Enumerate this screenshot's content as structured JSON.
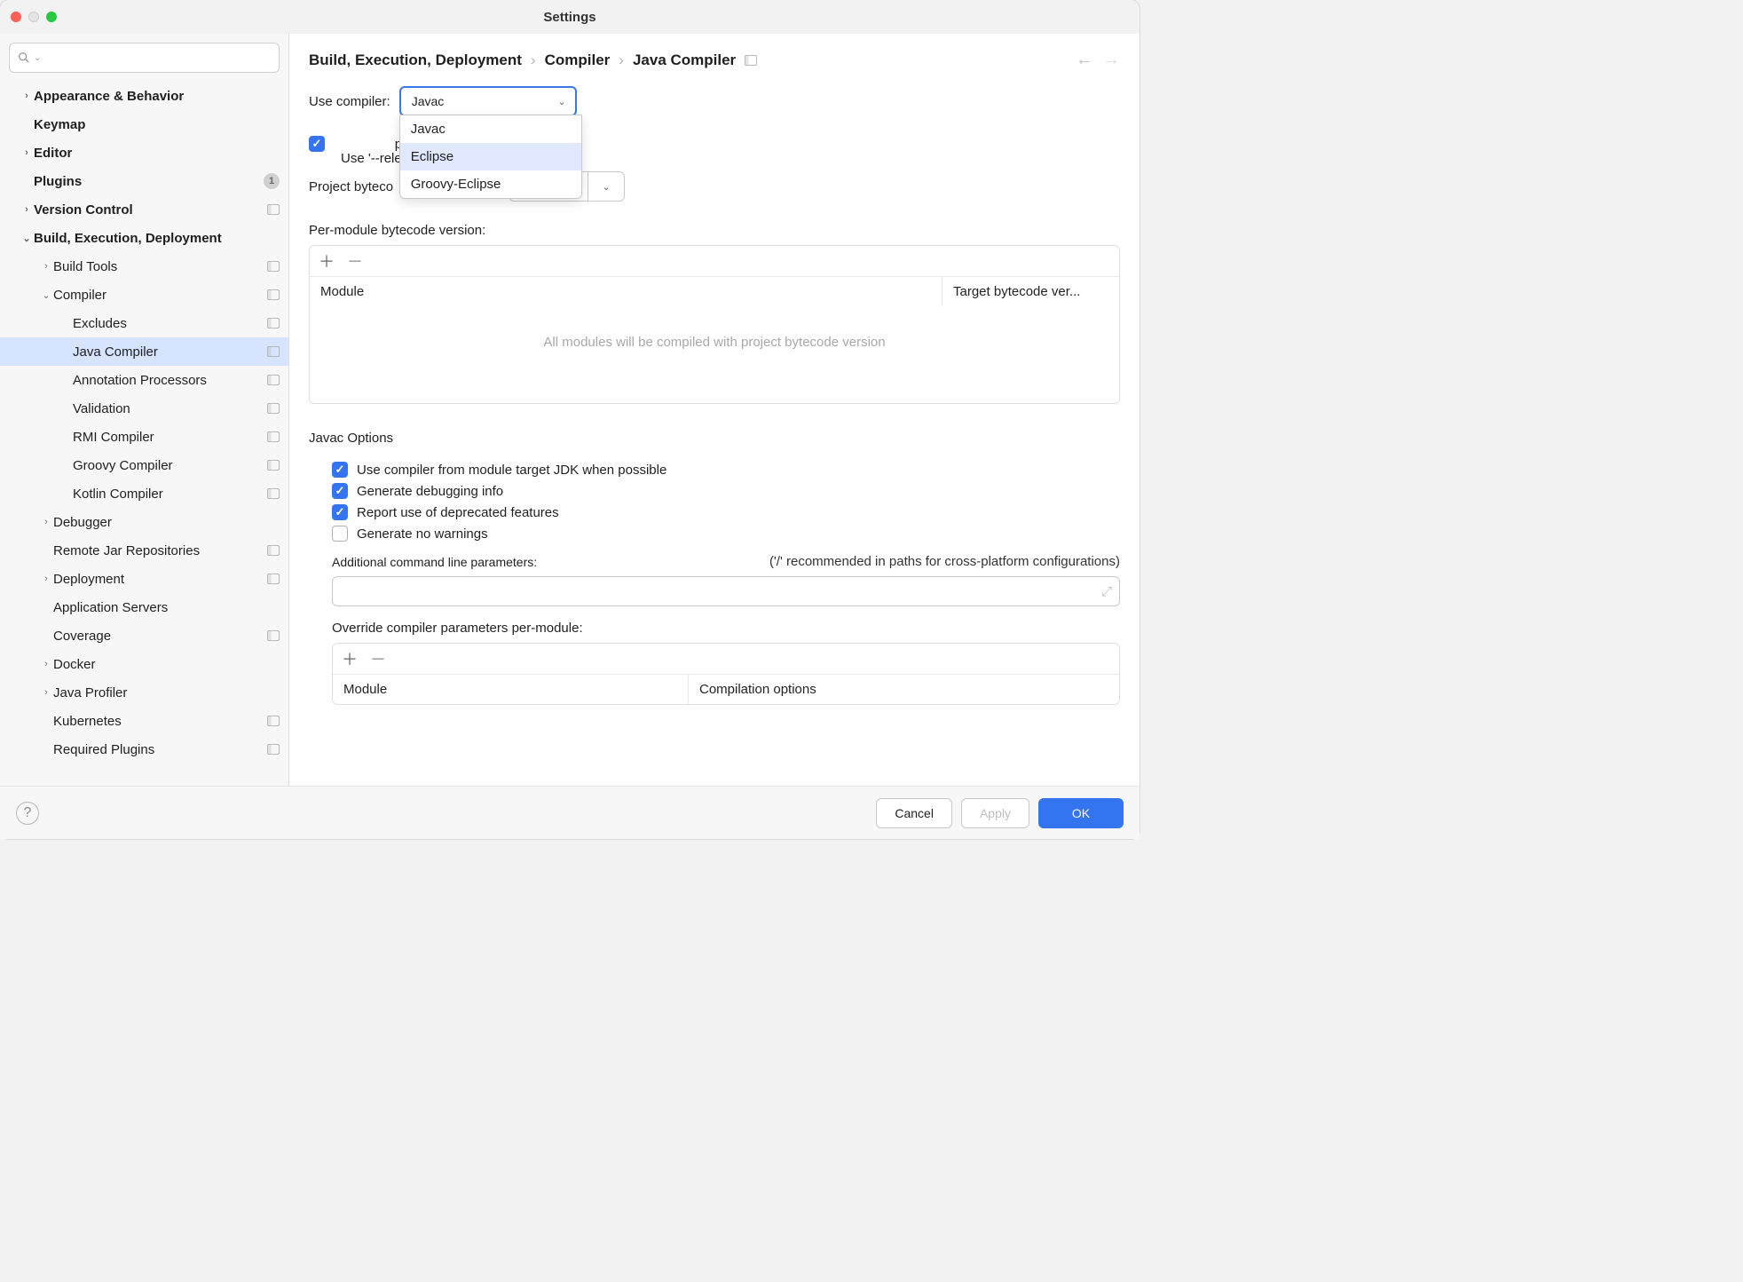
{
  "window": {
    "title": "Settings"
  },
  "sidebar": {
    "search_placeholder": "",
    "items": [
      {
        "label": "Appearance & Behavior",
        "bold": true,
        "chev": "›",
        "indent": 0
      },
      {
        "label": "Keymap",
        "bold": true,
        "chev": "",
        "indent": 0
      },
      {
        "label": "Editor",
        "bold": true,
        "chev": "›",
        "indent": 0
      },
      {
        "label": "Plugins",
        "bold": true,
        "chev": "",
        "indent": 0,
        "badge": "1"
      },
      {
        "label": "Version Control",
        "bold": true,
        "chev": "›",
        "indent": 0,
        "proj": true
      },
      {
        "label": "Build, Execution, Deployment",
        "bold": true,
        "chev": "⌄",
        "indent": 0
      },
      {
        "label": "Build Tools",
        "bold": false,
        "chev": "›",
        "indent": 1,
        "proj": true
      },
      {
        "label": "Compiler",
        "bold": false,
        "chev": "⌄",
        "indent": 1,
        "proj": true
      },
      {
        "label": "Excludes",
        "bold": false,
        "chev": "",
        "indent": 2,
        "proj": true
      },
      {
        "label": "Java Compiler",
        "bold": false,
        "chev": "",
        "indent": 2,
        "proj": true,
        "selected": true
      },
      {
        "label": "Annotation Processors",
        "bold": false,
        "chev": "",
        "indent": 2,
        "proj": true
      },
      {
        "label": "Validation",
        "bold": false,
        "chev": "",
        "indent": 2,
        "proj": true
      },
      {
        "label": "RMI Compiler",
        "bold": false,
        "chev": "",
        "indent": 2,
        "proj": true
      },
      {
        "label": "Groovy Compiler",
        "bold": false,
        "chev": "",
        "indent": 2,
        "proj": true
      },
      {
        "label": "Kotlin Compiler",
        "bold": false,
        "chev": "",
        "indent": 2,
        "proj": true
      },
      {
        "label": "Debugger",
        "bold": false,
        "chev": "›",
        "indent": 1
      },
      {
        "label": "Remote Jar Repositories",
        "bold": false,
        "chev": "",
        "indent": 1,
        "proj": true
      },
      {
        "label": "Deployment",
        "bold": false,
        "chev": "›",
        "indent": 1,
        "proj": true
      },
      {
        "label": "Application Servers",
        "bold": false,
        "chev": "",
        "indent": 1
      },
      {
        "label": "Coverage",
        "bold": false,
        "chev": "",
        "indent": 1,
        "proj": true
      },
      {
        "label": "Docker",
        "bold": false,
        "chev": "›",
        "indent": 1
      },
      {
        "label": "Java Profiler",
        "bold": false,
        "chev": "›",
        "indent": 1
      },
      {
        "label": "Kubernetes",
        "bold": false,
        "chev": "",
        "indent": 1,
        "proj": true
      },
      {
        "label": "Required Plugins",
        "bold": false,
        "chev": "",
        "indent": 1,
        "proj": true
      }
    ]
  },
  "breadcrumb": {
    "a": "Build, Execution, Deployment",
    "b": "Compiler",
    "c": "Java Compiler"
  },
  "form": {
    "use_compiler_label": "Use compiler:",
    "use_compiler_value": "Javac",
    "compiler_options": [
      "Javac",
      "Eclipse",
      "Groovy-Eclipse"
    ],
    "release_option": "Use '--release' option for cross-compilation (Java 9 and later)",
    "proj_bytecode_label": "Project bytecode version:",
    "proj_bytecode_value": "",
    "per_module_label": "Per-module bytecode version:",
    "module_col": "Module",
    "target_col": "Target bytecode ver...",
    "empty_msg": "All modules will be compiled with project bytecode version",
    "javac_header": "Javac Options",
    "opt1": "Use compiler from module target JDK when possible",
    "opt2": "Generate debugging info",
    "opt3": "Report use of deprecated features",
    "opt4": "Generate no warnings",
    "addl_params_label": "Additional command line parameters:",
    "addl_params_hint": "('/' recommended in paths for cross-platform configurations)",
    "override_label": "Override compiler parameters per-module:",
    "override_col1": "Module",
    "override_col2": "Compilation options"
  },
  "footer": {
    "cancel": "Cancel",
    "apply": "Apply",
    "ok": "OK"
  }
}
